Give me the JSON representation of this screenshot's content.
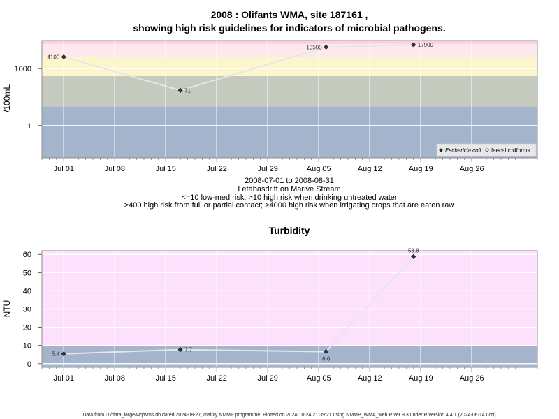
{
  "title_line1": "2008 : Olifants WMA, site 187161 ,",
  "title_line2": "showing high risk guidelines for indicators of microbial pathogens.",
  "subtitle_lines": [
    "2008-07-01 to 2008-08-31",
    "Letabasdrift on Marive Stream",
    "<=10 low-med risk; >10 high risk when drinking untreated water",
    ">400 high risk from full or partial contact; >4000 high risk when irrigating crops that are eaten raw"
  ],
  "footer": "Data from D:/data_large/wq/wms.db dated 2024-08-27, mainly NMMP programme. Plotted on 2024-10-24 21:39:21 using NMMP_WMA_web.R ver 9.3 under R version 4.4.1 (2024-06-14 ucrt)",
  "chart_data": [
    {
      "type": "line",
      "ylabel": "/100mL",
      "y_scale": "log",
      "xlim": [
        "2008-06-28",
        "2008-09-04"
      ],
      "ylim": [
        0.02,
        30000
      ],
      "x_ticks": [
        {
          "date": "2008-07-01",
          "label": "Jul 01"
        },
        {
          "date": "2008-07-08",
          "label": "Jul 08"
        },
        {
          "date": "2008-07-15",
          "label": "Jul 15"
        },
        {
          "date": "2008-07-22",
          "label": "Jul 22"
        },
        {
          "date": "2008-07-29",
          "label": "Jul 29"
        },
        {
          "date": "2008-08-05",
          "label": "Aug 05"
        },
        {
          "date": "2008-08-12",
          "label": "Aug 12"
        },
        {
          "date": "2008-08-19",
          "label": "Aug 19"
        },
        {
          "date": "2008-08-26",
          "label": "Aug 26"
        }
      ],
      "y_ticks": [
        {
          "value": 1,
          "label": "1"
        },
        {
          "value": 1000,
          "label": "1000"
        }
      ],
      "bands": [
        {
          "from": 0.02,
          "to": 10,
          "color": "#a3b4cc"
        },
        {
          "from": 10,
          "to": 400,
          "color": "#c4cabd"
        },
        {
          "from": 400,
          "to": 4000,
          "color": "#fbf6cc"
        },
        {
          "from": 4000,
          "to": 20000,
          "color": "#fde8ee"
        },
        {
          "from": 20000,
          "to": 30000,
          "color": "#fccfd9"
        }
      ],
      "series": [
        {
          "name": "Eschericia coli",
          "points": [
            {
              "date": "2008-07-01",
              "value": 4100,
              "label": "4100",
              "label_side": "left"
            },
            {
              "date": "2008-07-17",
              "value": 71,
              "label": "71",
              "label_side": "right"
            },
            {
              "date": "2008-08-06",
              "value": 13500,
              "label": "13500",
              "label_side": "left"
            },
            {
              "date": "2008-08-18",
              "value": 17900,
              "label": "17900",
              "label_side": "right"
            }
          ]
        }
      ],
      "legend": {
        "position": "bottom-right",
        "entries": [
          {
            "name": "Eschericia coli",
            "marker": "filled-diamond",
            "italic": true
          },
          {
            "name": "faecal coliforms",
            "marker": "open-diamond",
            "italic": false
          }
        ]
      }
    },
    {
      "type": "line",
      "title": "Turbidity",
      "ylabel": "NTU",
      "y_scale": "linear",
      "xlim": [
        "2008-06-28",
        "2008-09-04"
      ],
      "ylim": [
        -2,
        62
      ],
      "x_ticks": [
        {
          "date": "2008-07-01",
          "label": "Jul 01"
        },
        {
          "date": "2008-07-08",
          "label": "Jul 08"
        },
        {
          "date": "2008-07-15",
          "label": "Jul 15"
        },
        {
          "date": "2008-07-22",
          "label": "Jul 22"
        },
        {
          "date": "2008-07-29",
          "label": "Jul 29"
        },
        {
          "date": "2008-08-05",
          "label": "Aug 05"
        },
        {
          "date": "2008-08-12",
          "label": "Aug 12"
        },
        {
          "date": "2008-08-19",
          "label": "Aug 19"
        },
        {
          "date": "2008-08-26",
          "label": "Aug 26"
        }
      ],
      "y_ticks": [
        {
          "value": 0,
          "label": "0"
        },
        {
          "value": 10,
          "label": "10"
        },
        {
          "value": 20,
          "label": "20"
        },
        {
          "value": 30,
          "label": "30"
        },
        {
          "value": 40,
          "label": "40"
        },
        {
          "value": 50,
          "label": "50"
        },
        {
          "value": 60,
          "label": "60"
        }
      ],
      "bands": [
        {
          "from": -2,
          "to": 10,
          "color": "#a3b4cc"
        },
        {
          "from": 10,
          "to": 62,
          "color": "#fde0fc"
        }
      ],
      "series": [
        {
          "name": "Turbidity",
          "points": [
            {
              "date": "2008-07-01",
              "value": 5.4,
              "label": "5.4",
              "label_side": "left"
            },
            {
              "date": "2008-07-17",
              "value": 7.7,
              "label": "7.7",
              "label_side": "right"
            },
            {
              "date": "2008-08-06",
              "value": 6.6,
              "label": "6.6",
              "label_side": "below"
            },
            {
              "date": "2008-08-18",
              "value": 58.8,
              "label": "58.8",
              "label_side": "above"
            }
          ]
        }
      ]
    }
  ]
}
